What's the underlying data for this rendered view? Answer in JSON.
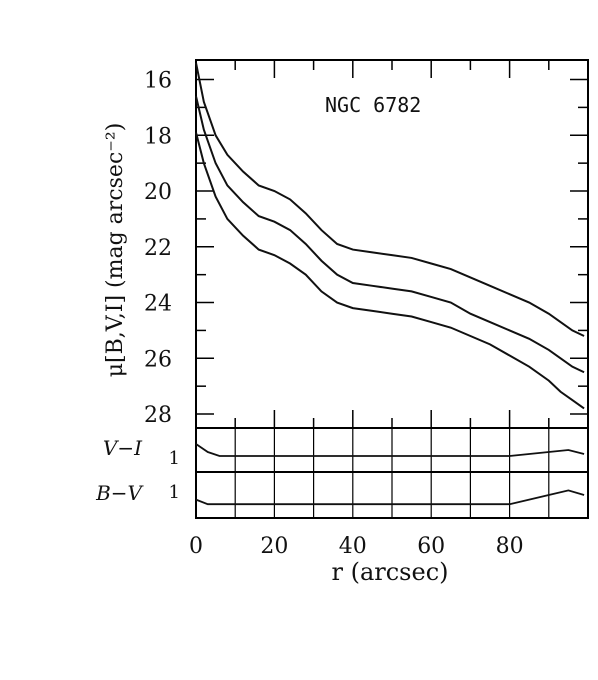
{
  "chart_data": [
    {
      "type": "line",
      "title": "NGC 6782",
      "ylabel": "μ[B,V,I] (mag arcsec⁻²)",
      "xlim": [
        0,
        100
      ],
      "ylim": [
        28.5,
        15.3
      ],
      "y_inverted": true,
      "grid": false,
      "x_ticks": [
        "0",
        "20",
        "40",
        "60",
        "80"
      ],
      "y_ticks": [
        "16",
        "18",
        "20",
        "22",
        "24",
        "26",
        "28"
      ],
      "series": [
        {
          "x": [
            0,
            2,
            5,
            8,
            12,
            16,
            20,
            24,
            28,
            32,
            36,
            40,
            45,
            50,
            55,
            60,
            65,
            70,
            75,
            80,
            85,
            90,
            93,
            96,
            99
          ],
          "y": [
            15.4,
            16.8,
            18.0,
            18.7,
            19.3,
            19.8,
            20.0,
            20.3,
            20.8,
            21.4,
            21.9,
            22.1,
            22.2,
            22.3,
            22.4,
            22.6,
            22.8,
            23.1,
            23.4,
            23.7,
            24.0,
            24.4,
            24.7,
            25.0,
            25.2
          ]
        },
        {
          "x": [
            0,
            2,
            5,
            8,
            12,
            16,
            20,
            24,
            28,
            32,
            36,
            40,
            45,
            50,
            55,
            60,
            65,
            70,
            75,
            80,
            85,
            90,
            93,
            96,
            99
          ],
          "y": [
            16.6,
            17.8,
            19.0,
            19.8,
            20.4,
            20.9,
            21.1,
            21.4,
            21.9,
            22.5,
            23.0,
            23.3,
            23.4,
            23.5,
            23.6,
            23.8,
            24.0,
            24.4,
            24.7,
            25.0,
            25.3,
            25.7,
            26.0,
            26.3,
            26.5
          ]
        },
        {
          "x": [
            0,
            2,
            5,
            8,
            12,
            16,
            20,
            24,
            28,
            32,
            36,
            40,
            45,
            50,
            55,
            60,
            65,
            70,
            75,
            80,
            85,
            90,
            93,
            96,
            99
          ],
          "y": [
            17.9,
            19.0,
            20.2,
            21.0,
            21.6,
            22.1,
            22.3,
            22.6,
            23.0,
            23.6,
            24.0,
            24.2,
            24.3,
            24.4,
            24.5,
            24.7,
            24.9,
            25.2,
            25.5,
            25.9,
            26.3,
            26.8,
            27.2,
            27.5,
            27.8
          ]
        }
      ]
    },
    {
      "type": "line",
      "ylabel": "V−I",
      "xlim": [
        0,
        100
      ],
      "y_ticks": [
        "1"
      ],
      "series": [
        {
          "x": [
            0,
            3,
            6,
            10,
            20,
            30,
            40,
            50,
            60,
            70,
            80,
            85,
            90,
            95,
            99
          ],
          "y": [
            1.6,
            1.4,
            1.3,
            1.3,
            1.3,
            1.3,
            1.3,
            1.3,
            1.3,
            1.3,
            1.3,
            1.35,
            1.4,
            1.45,
            1.35
          ]
        }
      ]
    },
    {
      "type": "line",
      "ylabel": "B−V",
      "xlabel": "r (arcsec)",
      "xlim": [
        0,
        100
      ],
      "x_ticks": [
        "0",
        "20",
        "40",
        "60",
        "80"
      ],
      "y_ticks": [
        "1"
      ],
      "series": [
        {
          "x": [
            0,
            3,
            6,
            10,
            20,
            30,
            40,
            50,
            60,
            70,
            80,
            85,
            90,
            95,
            99
          ],
          "y": [
            0.8,
            0.75,
            0.75,
            0.75,
            0.75,
            0.75,
            0.75,
            0.75,
            0.75,
            0.75,
            0.75,
            0.8,
            0.85,
            0.9,
            0.85
          ]
        }
      ]
    }
  ]
}
